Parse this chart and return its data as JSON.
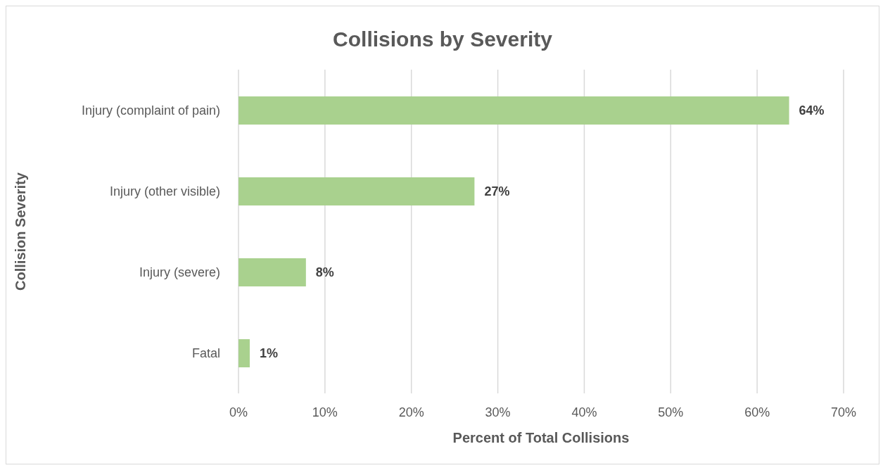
{
  "chart_data": {
    "type": "bar",
    "orientation": "horizontal",
    "title": "Collisions by Severity",
    "xlabel": "Percent of Total Collisions",
    "ylabel": "Collision Severity",
    "categories": [
      "Injury (complaint of pain)",
      "Injury (other visible)",
      "Injury (severe)",
      "Fatal"
    ],
    "values": [
      63.7,
      27.3,
      7.8,
      1.3
    ],
    "value_labels": [
      "64%",
      "27%",
      "8%",
      "1%"
    ],
    "color": "#a9d18e",
    "xlim": [
      0,
      70
    ],
    "xticks": [
      {
        "value": 0,
        "label": "0%"
      },
      {
        "value": 10,
        "label": "10%"
      },
      {
        "value": 20,
        "label": "20%"
      },
      {
        "value": 30,
        "label": "30%"
      },
      {
        "value": 40,
        "label": "40%"
      },
      {
        "value": 50,
        "label": "50%"
      },
      {
        "value": 60,
        "label": "60%"
      },
      {
        "value": 70,
        "label": "70%"
      }
    ],
    "grid": "x"
  }
}
